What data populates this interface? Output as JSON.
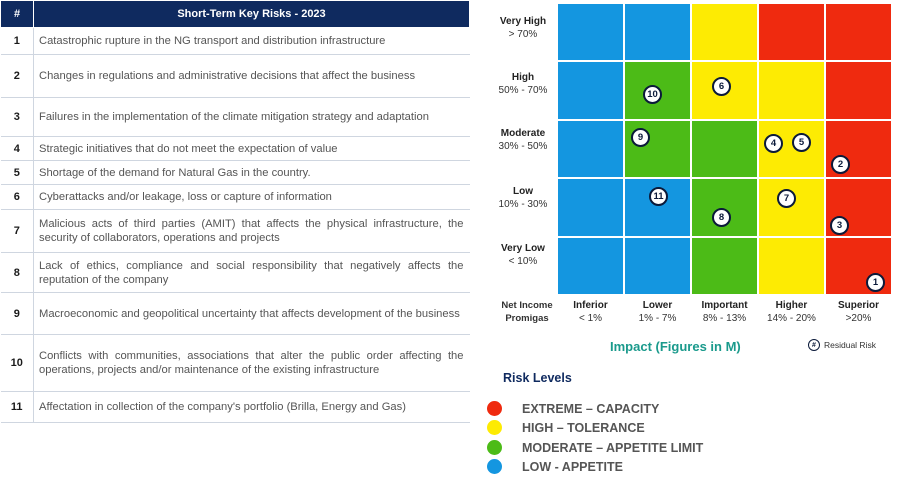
{
  "table": {
    "header_num": "#",
    "header_title": "Short-Term Key Risks - 2023",
    "rows": [
      {
        "num": "1",
        "text": "Catastrophic rupture in the NG transport and distribution infrastructure"
      },
      {
        "num": "2",
        "text": "Changes in regulations and administrative decisions that affect the business"
      },
      {
        "num": "3",
        "text": "Failures in the implementation of the climate mitigation strategy and adaptation"
      },
      {
        "num": "4",
        "text": "Strategic initiatives that do not meet the expectation of value"
      },
      {
        "num": "5",
        "text": "Shortage of the demand for Natural Gas in the country."
      },
      {
        "num": "6",
        "text": "Cyberattacks and/or leakage, loss or capture of information"
      },
      {
        "num": "7",
        "text": "Malicious acts of third parties (AMIT) that affects the physical infrastructure, the security of collaborators, operations and projects"
      },
      {
        "num": "8",
        "text": "Lack of ethics, compliance and social responsibility that negatively affects the reputation of the company"
      },
      {
        "num": "9",
        "text": "Macroeconomic and geopolitical uncertainty that affects development of the business"
      },
      {
        "num": "10",
        "text": "Conflicts with communities, associations that alter the public order affecting the operations, projects and/or maintenance of the existing infrastructure"
      },
      {
        "num": "11",
        "text": "Affectation in collection of the company's portfolio (Brilla, Energy and Gas)"
      }
    ]
  },
  "matrix": {
    "rows": [
      {
        "name": "Very High",
        "range": "> 70%"
      },
      {
        "name": "High",
        "range": "50% - 70%"
      },
      {
        "name": "Moderate",
        "range": "30% - 50%"
      },
      {
        "name": "Low",
        "range": "10% - 30%"
      },
      {
        "name": "Very Low",
        "range": "< 10%"
      }
    ],
    "columns": [
      {
        "name": "Inferior",
        "range": "< 1%"
      },
      {
        "name": "Lower",
        "range": "1% - 7%"
      },
      {
        "name": "Important",
        "range": "8% - 13%"
      },
      {
        "name": "Higher",
        "range": "14% - 20%"
      },
      {
        "name": "Superior",
        "range": ">20%"
      }
    ],
    "axis_caption_line1": "Net Income",
    "axis_caption_line2": "Promigas",
    "impact_title": "Impact (Figures in M)",
    "residual_symbol": "#",
    "residual_label": "Residual Risk",
    "colors": [
      [
        "blue",
        "blue",
        "yellow",
        "red",
        "red"
      ],
      [
        "blue",
        "green",
        "yellow",
        "yellow",
        "red"
      ],
      [
        "blue",
        "green",
        "green",
        "yellow",
        "red"
      ],
      [
        "blue",
        "blue",
        "green",
        "yellow",
        "red"
      ],
      [
        "blue",
        "blue",
        "green",
        "yellow",
        "red"
      ]
    ],
    "markers": [
      "1",
      "2",
      "3",
      "4",
      "5",
      "6",
      "7",
      "8",
      "9",
      "10",
      "11"
    ]
  },
  "legend": {
    "title": "Risk Levels",
    "items": [
      {
        "color": "#ef2a0f",
        "label": "EXTREME – CAPACITY"
      },
      {
        "color": "#fdeb03",
        "label": "HIGH – TOLERANCE"
      },
      {
        "color": "#4cbb17",
        "label": "MODERATE – APPETITE LIMIT"
      },
      {
        "color": "#1496e0",
        "label": "LOW - APPETITE"
      }
    ]
  }
}
